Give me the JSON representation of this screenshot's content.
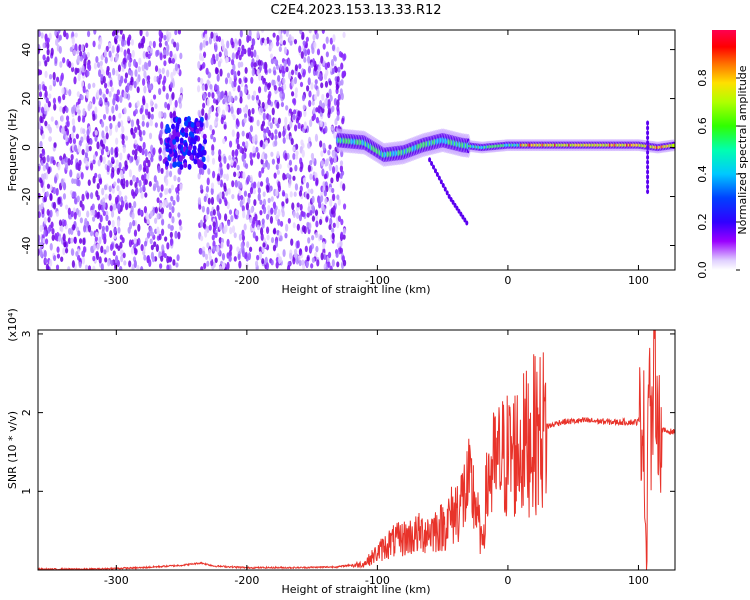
{
  "title": "C2E4.2023.153.13.33.R12",
  "chart_data": [
    {
      "type": "heatmap",
      "title": "C2E4.2023.153.13.33.R12",
      "xlabel": "Height of straight line (km)",
      "ylabel": "Frequency (Hz)",
      "xlim": [
        -360,
        128
      ],
      "ylim": [
        -50,
        48
      ],
      "xticks": [
        -300,
        -200,
        -100,
        0,
        100
      ],
      "yticks": [
        -40,
        -20,
        0,
        20,
        40
      ],
      "colorbar": {
        "label": "Normalized spectral amplitude",
        "range": [
          0.0,
          1.0
        ],
        "ticks": [
          0.0,
          0.2,
          0.4,
          0.6,
          0.8
        ],
        "colormap": [
          "#e8d8ff",
          "#8a00ff",
          "#0000ff",
          "#00c8ff",
          "#00ff90",
          "#7cff00",
          "#ffff00",
          "#ff8000",
          "#ff0000",
          "#ff0060"
        ]
      },
      "features": {
        "noise_band_start_x": -360,
        "noise_band_end_x": -125,
        "gap_x": [
          -250,
          -237
        ],
        "signal_start_x": -130,
        "signal_end_x": 128,
        "signal_trace": [
          {
            "x": -130,
            "y": 3
          },
          {
            "x": -110,
            "y": 2
          },
          {
            "x": -95,
            "y": -3
          },
          {
            "x": -80,
            "y": -2
          },
          {
            "x": -65,
            "y": 1
          },
          {
            "x": -50,
            "y": 3
          },
          {
            "x": -35,
            "y": 1
          },
          {
            "x": -20,
            "y": 0
          },
          {
            "x": 0,
            "y": 1
          },
          {
            "x": 40,
            "y": 1
          },
          {
            "x": 80,
            "y": 1
          },
          {
            "x": 100,
            "y": 1
          },
          {
            "x": 115,
            "y": 0
          },
          {
            "x": 128,
            "y": 1
          }
        ],
        "side_branch": [
          {
            "x": -60,
            "y": -5
          },
          {
            "x": -45,
            "y": -20
          },
          {
            "x": -30,
            "y": -32
          }
        ]
      }
    },
    {
      "type": "line",
      "xlabel": "Height of straight line (km)",
      "ylabel": "SNR (10 * v/v)",
      "y_multiplier": "(x10⁴)",
      "xlim": [
        -360,
        128
      ],
      "ylim": [
        0,
        3.05
      ],
      "xticks": [
        -300,
        -200,
        -100,
        0,
        100
      ],
      "yticks": [
        1,
        2,
        3
      ],
      "color": "#e8332a",
      "series": [
        {
          "values_x": [
            -360,
            -320,
            -280,
            -250,
            -235,
            -225,
            -200,
            -160,
            -130,
            -110,
            -100,
            -90,
            -80,
            -70,
            -60,
            -50,
            -45,
            -40,
            -35,
            -30,
            -25,
            -20,
            -15,
            -10,
            -5,
            0,
            10,
            20,
            30,
            40,
            60,
            80,
            100,
            104,
            106,
            108,
            110,
            112,
            116,
            128
          ],
          "values_y": [
            0.0,
            0.0,
            0.02,
            0.05,
            0.08,
            0.04,
            0.02,
            0.02,
            0.03,
            0.08,
            0.22,
            0.35,
            0.4,
            0.45,
            0.5,
            0.55,
            0.65,
            0.75,
            0.9,
            1.05,
            0.9,
            0.3,
            1.2,
            1.3,
            1.4,
            1.45,
            1.55,
            1.72,
            1.82,
            1.88,
            1.9,
            1.88,
            1.88,
            1.9,
            0.15,
            2.9,
            1.4,
            2.7,
            1.78,
            1.75
          ]
        }
      ]
    }
  ]
}
